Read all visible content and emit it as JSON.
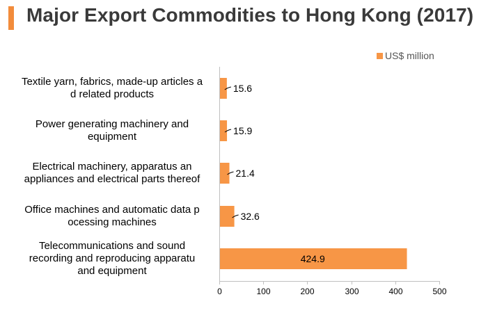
{
  "title": "Major Export Commodities to Hong Kong (2017)",
  "colors": {
    "accent": "#f28c3c",
    "bar": "#f79646",
    "title_text": "#3a3a3a"
  },
  "chart_data": {
    "type": "bar",
    "orientation": "horizontal",
    "categories": [
      "Textile yarn, fabrics, made-up articles and related products",
      "Power generating machinery and equipment",
      "Electrical machinery, apparatus and appliances and electrical parts thereof",
      "Office machines and automatic data processing machines",
      "Telecommunications and sound recording and reproducing apparatus and equipment"
    ],
    "series": [
      {
        "name": "US$ million",
        "values": [
          15.6,
          15.9,
          21.4,
          32.6,
          424.9
        ]
      }
    ],
    "data_labels": [
      "15.6",
      "15.9",
      "21.4",
      "32.6",
      "424.9"
    ],
    "xlim": [
      0,
      500
    ],
    "xticks": [
      0,
      100,
      200,
      300,
      400,
      500
    ],
    "xtick_labels": [
      "0",
      "100",
      "200",
      "300",
      "400",
      "500"
    ],
    "grid": false,
    "legend_position": "top-right"
  }
}
